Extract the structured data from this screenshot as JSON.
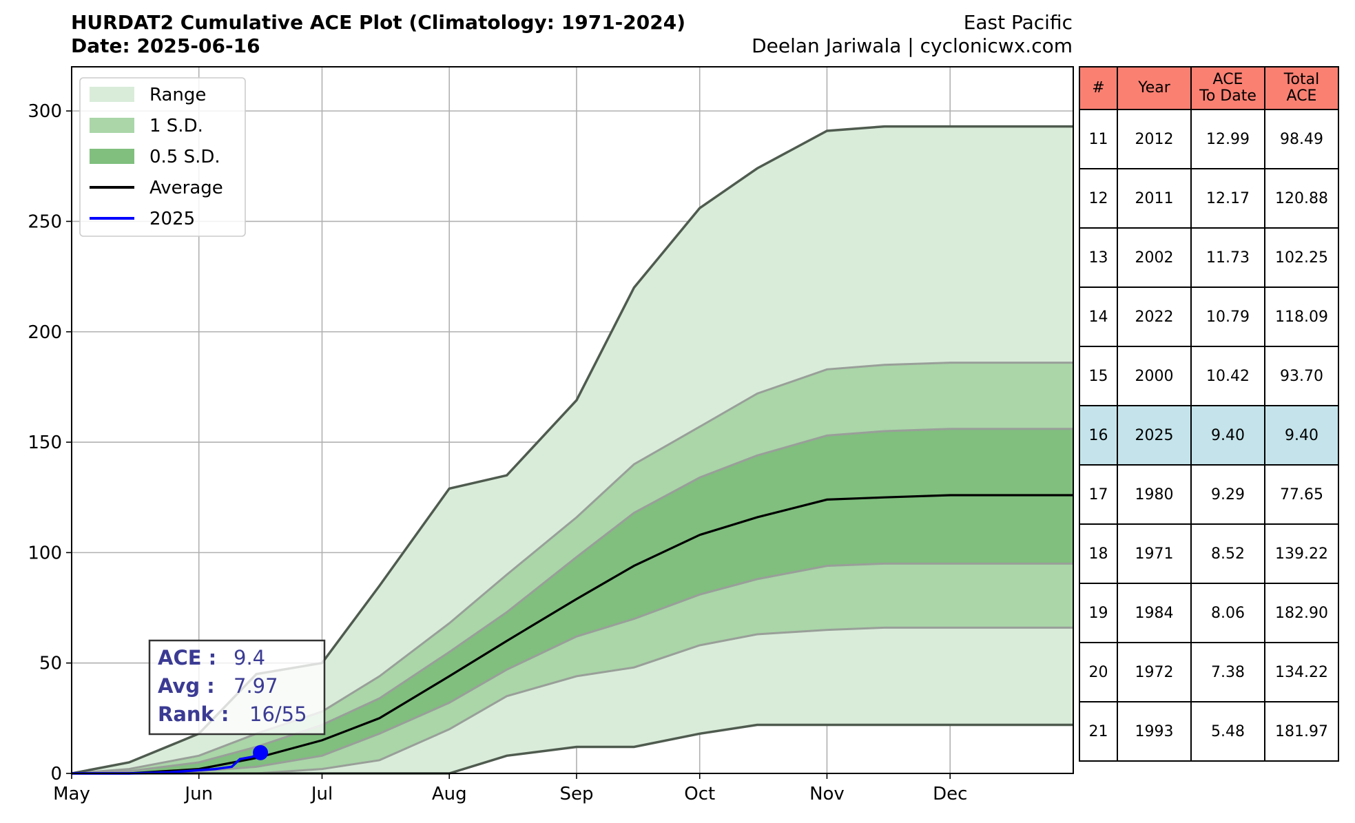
{
  "header": {
    "title": "HURDAT2 Cumulative ACE Plot (Climatology: 1971-2024)",
    "date": "Date: 2025-06-16",
    "basin": "East Pacific",
    "credit": "Deelan Jariwala | cyclonicwx.com"
  },
  "colors": {
    "range": "#d9ecda",
    "sd1": "#aad6a8",
    "sd05": "#80bf7e",
    "envelope": "#4f5b4f",
    "average": "#000000",
    "current": "#0000ff",
    "table_header": "#fa8072",
    "table_highlight": "#c4e3ea",
    "infobox_text": "#3b3b94"
  },
  "chart_data": {
    "type": "area",
    "title": "HURDAT2 Cumulative ACE Plot (Climatology: 1971-2024)",
    "xlabel": "",
    "ylabel": "",
    "x_ticks": [
      "May",
      "Jun",
      "Jul",
      "Aug",
      "Sep",
      "Oct",
      "Nov",
      "Dec"
    ],
    "x_range": [
      "May 1",
      "Dec 31"
    ],
    "ylim": [
      0,
      320
    ],
    "y_ticks": [
      0,
      50,
      100,
      150,
      200,
      250,
      300
    ],
    "grid": true,
    "legend_position": "top-left",
    "legend": [
      "Range",
      "1 S.D.",
      "0.5 S.D.",
      "Average",
      "2025"
    ],
    "x": [
      "May 1",
      "May 15",
      "Jun 1",
      "Jun 15",
      "Jul 1",
      "Jul 15",
      "Aug 1",
      "Aug 15",
      "Sep 1",
      "Sep 15",
      "Oct 1",
      "Oct 15",
      "Nov 1",
      "Nov 15",
      "Dec 1",
      "Dec 31"
    ],
    "series": [
      {
        "name": "Range",
        "role": "range_max",
        "values": [
          0,
          5,
          18,
          45,
          50,
          85,
          129,
          135,
          169,
          220,
          256,
          274,
          291,
          293,
          293,
          293
        ]
      },
      {
        "name": "Range",
        "role": "range_min",
        "values": [
          0,
          0,
          0,
          0,
          0,
          0,
          0,
          8,
          12,
          12,
          18,
          22,
          22,
          22,
          22,
          22
        ]
      },
      {
        "name": "1 S.D.",
        "role": "sd1_upper",
        "values": [
          0,
          2,
          8,
          18,
          28,
          44,
          68,
          90,
          116,
          140,
          157,
          172,
          183,
          185,
          186,
          186
        ]
      },
      {
        "name": "1 S.D.",
        "role": "sd1_lower",
        "values": [
          0,
          0,
          0,
          0,
          2,
          6,
          20,
          35,
          44,
          48,
          58,
          63,
          65,
          66,
          66,
          66
        ]
      },
      {
        "name": "0.5 S.D.",
        "role": "sd05_upper",
        "values": [
          0,
          1,
          5,
          12,
          22,
          34,
          55,
          73,
          98,
          118,
          134,
          144,
          153,
          155,
          156,
          156
        ]
      },
      {
        "name": "0.5 S.D.",
        "role": "sd05_lower",
        "values": [
          0,
          0,
          1,
          3,
          8,
          18,
          32,
          47,
          62,
          70,
          81,
          88,
          94,
          95,
          95,
          95
        ]
      },
      {
        "name": "Average",
        "role": "average",
        "values": [
          0,
          0,
          2,
          7,
          15,
          25,
          44,
          60,
          79,
          94,
          108,
          116,
          124,
          125,
          126,
          126
        ]
      },
      {
        "name": "2025",
        "role": "current",
        "x": [
          "May 1",
          "May 15",
          "May 25",
          "Jun 5",
          "Jun 9",
          "Jun 11",
          "Jun 14",
          "Jun 16"
        ],
        "values": [
          0,
          0,
          0.5,
          2,
          3,
          6.5,
          7.5,
          9.4
        ]
      }
    ]
  },
  "info_box": {
    "ace_label": "ACE :",
    "ace_value": "9.4",
    "avg_label": "Avg :",
    "avg_value": "7.97",
    "rank_label": "Rank :",
    "rank_value": "16/55"
  },
  "table": {
    "headers": [
      "#",
      "Year",
      "ACE\nTo Date",
      "Total\nACE"
    ],
    "rows": [
      [
        "11",
        "2012",
        "12.99",
        "98.49"
      ],
      [
        "12",
        "2011",
        "12.17",
        "120.88"
      ],
      [
        "13",
        "2002",
        "11.73",
        "102.25"
      ],
      [
        "14",
        "2022",
        "10.79",
        "118.09"
      ],
      [
        "15",
        "2000",
        "10.42",
        "93.70"
      ],
      [
        "16",
        "2025",
        "9.40",
        "9.40"
      ],
      [
        "17",
        "1980",
        "9.29",
        "77.65"
      ],
      [
        "18",
        "1971",
        "8.52",
        "139.22"
      ],
      [
        "19",
        "1984",
        "8.06",
        "182.90"
      ],
      [
        "20",
        "1972",
        "7.38",
        "134.22"
      ],
      [
        "21",
        "1993",
        "5.48",
        "181.97"
      ]
    ],
    "highlight_year": "2025"
  }
}
